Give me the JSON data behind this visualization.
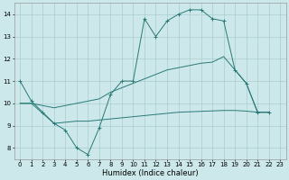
{
  "xlabel": "Humidex (Indice chaleur)",
  "bg_color": "#cce8ea",
  "grid_color": "#aacccc",
  "line_color": "#2a7a78",
  "xlim": [
    -0.5,
    23.5
  ],
  "ylim": [
    7.5,
    14.5
  ],
  "line1_x": [
    0,
    1,
    2,
    3,
    4,
    5,
    6,
    7,
    8,
    9,
    10,
    11,
    12,
    13,
    14,
    15,
    16,
    17,
    18,
    19,
    20,
    21,
    22
  ],
  "line1_y": [
    11.0,
    10.1,
    9.6,
    9.1,
    8.8,
    8.0,
    7.7,
    8.9,
    10.4,
    11.0,
    11.0,
    13.8,
    13.0,
    13.7,
    14.0,
    14.2,
    14.2,
    13.8,
    13.7,
    11.5,
    10.9,
    9.6,
    9.6
  ],
  "line2_x": [
    0,
    1,
    2,
    3,
    4,
    5,
    6,
    7,
    8,
    9,
    10,
    11,
    12,
    13,
    14,
    15,
    16,
    17,
    18,
    19,
    20,
    21,
    22
  ],
  "line2_y": [
    10.0,
    10.0,
    9.55,
    9.1,
    9.15,
    9.2,
    9.2,
    9.25,
    9.3,
    9.35,
    9.4,
    9.45,
    9.5,
    9.55,
    9.6,
    9.62,
    9.64,
    9.66,
    9.68,
    9.68,
    9.65,
    9.6,
    9.6
  ],
  "line3_x": [
    0,
    1,
    2,
    3,
    4,
    5,
    6,
    7,
    8,
    9,
    10,
    11,
    12,
    13,
    14,
    15,
    16,
    17,
    18,
    19,
    20,
    21,
    22
  ],
  "line3_y": [
    10.0,
    10.0,
    9.9,
    9.8,
    9.9,
    10.0,
    10.1,
    10.2,
    10.5,
    10.7,
    10.9,
    11.1,
    11.3,
    11.5,
    11.6,
    11.7,
    11.8,
    11.85,
    12.1,
    11.5,
    10.9,
    9.6,
    9.6
  ],
  "xticks": [
    0,
    1,
    2,
    3,
    4,
    5,
    6,
    7,
    8,
    9,
    10,
    11,
    12,
    13,
    14,
    15,
    16,
    17,
    18,
    19,
    20,
    21,
    22,
    23
  ],
  "yticks": [
    8,
    9,
    10,
    11,
    12,
    13,
    14
  ],
  "xlabel_fontsize": 6.0,
  "tick_fontsize": 5.0
}
